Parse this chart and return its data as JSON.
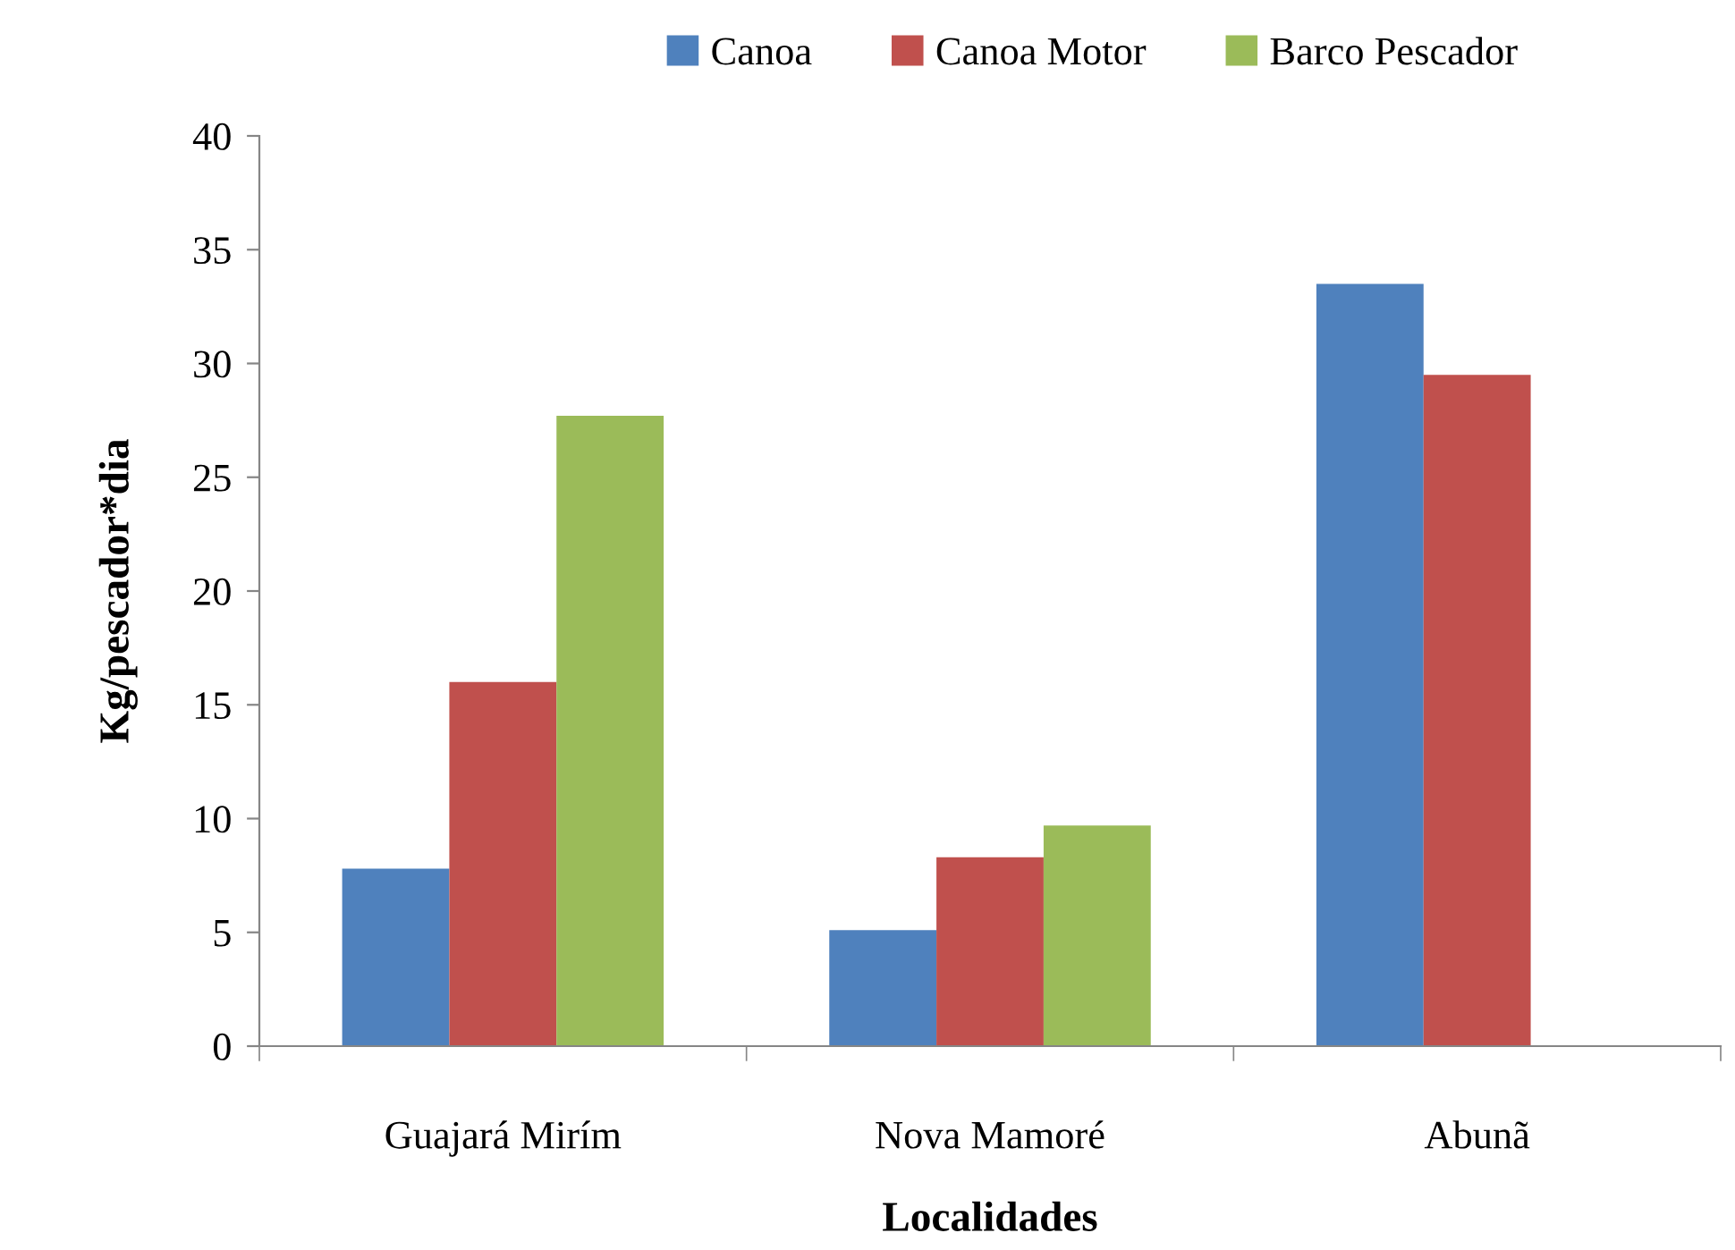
{
  "chart_data": {
    "type": "bar",
    "xlabel": "Localidades",
    "ylabel": "Kg/pescador*dia",
    "categories": [
      "Guajará Mirím",
      "Nova Mamoré",
      "Abunã"
    ],
    "series": [
      {
        "name": "Canoa",
        "color": "#4f81bd",
        "values": [
          7.8,
          5.1,
          33.5
        ]
      },
      {
        "name": "Canoa Motor",
        "color": "#c0504d",
        "values": [
          16.0,
          8.3,
          29.5
        ]
      },
      {
        "name": "Barco Pescador",
        "color": "#9bbb59",
        "values": [
          27.7,
          9.7,
          null
        ]
      }
    ],
    "ylim": [
      0,
      40
    ],
    "yticks": [
      0,
      5,
      10,
      15,
      20,
      25,
      30,
      35,
      40
    ],
    "grid": false,
    "legend": "top"
  }
}
